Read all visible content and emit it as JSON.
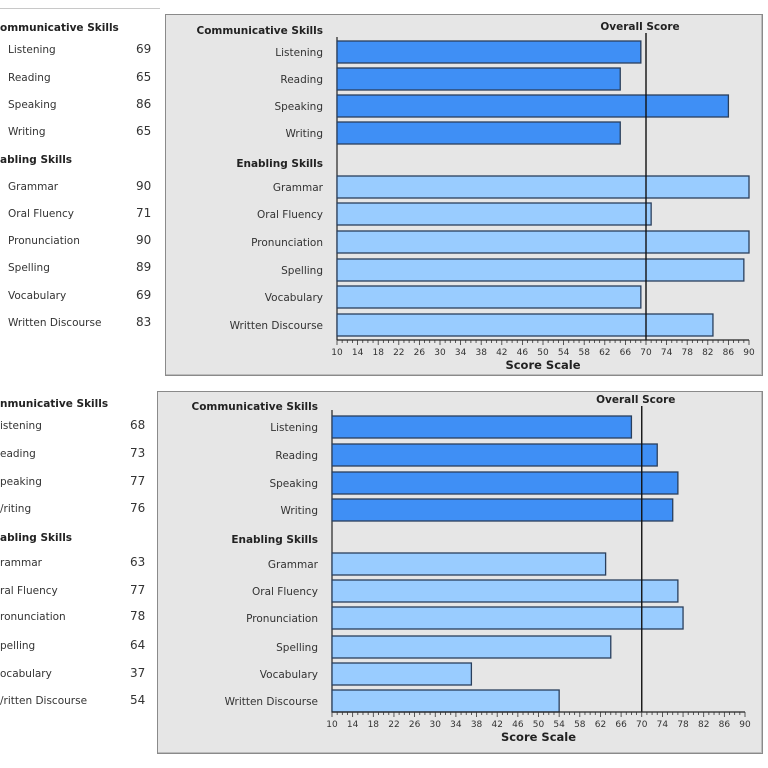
{
  "reports": [
    {
      "side_list": {
        "communicative_header": "ommunicative Skills",
        "enabling_header": "abling Skills",
        "communicative": [
          {
            "label": "Listening",
            "value": "69"
          },
          {
            "label": "Reading",
            "value": "65"
          },
          {
            "label": "Speaking",
            "value": "86"
          },
          {
            "label": "Writing",
            "value": "65"
          }
        ],
        "enabling": [
          {
            "label": "Grammar",
            "value": "90"
          },
          {
            "label": "Oral Fluency",
            "value": "71"
          },
          {
            "label": "Pronunciation",
            "value": "90"
          },
          {
            "label": "Spelling",
            "value": "89"
          },
          {
            "label": "Vocabulary",
            "value": "69"
          },
          {
            "label": "Written Discourse",
            "value": "83"
          }
        ]
      }
    },
    {
      "side_list": {
        "communicative_header": "nmunicative Skills",
        "enabling_header": "abling Skills",
        "communicative": [
          {
            "label": "istening",
            "value": "68"
          },
          {
            "label": "eading",
            "value": "73"
          },
          {
            "label": "peaking",
            "value": "77"
          },
          {
            "label": "/riting",
            "value": "76"
          }
        ],
        "enabling": [
          {
            "label": "rammar",
            "value": "63"
          },
          {
            "label": "ral Fluency",
            "value": "77"
          },
          {
            "label": "ronunciation",
            "value": "78"
          },
          {
            "label": "pelling",
            "value": "64"
          },
          {
            "label": "ocabulary",
            "value": "37"
          },
          {
            "label": "/ritten Discourse",
            "value": "54"
          }
        ]
      }
    }
  ],
  "colors": {
    "communicative_bar": "#3f8ff5",
    "enabling_bar": "#99ccff",
    "bar_outline": "#2a3f5c",
    "panel_bg": "#e6e6e6",
    "overall_line": "#111111"
  },
  "chart_data": [
    {
      "type": "bar",
      "orientation": "horizontal",
      "title": "",
      "xlabel": "Score Scale",
      "ylabel": "",
      "xlim": [
        10,
        90
      ],
      "xticks": [
        10,
        14,
        18,
        22,
        26,
        30,
        34,
        38,
        42,
        46,
        50,
        54,
        58,
        62,
        66,
        70,
        74,
        78,
        82,
        86,
        90
      ],
      "groups": [
        {
          "name": "Communicative Skills",
          "categories": [
            "Listening",
            "Reading",
            "Speaking",
            "Writing"
          ],
          "values": [
            69,
            65,
            86,
            65
          ]
        },
        {
          "name": "Enabling Skills",
          "categories": [
            "Grammar",
            "Oral Fluency",
            "Pronunciation",
            "Spelling",
            "Vocabulary",
            "Written Discourse"
          ],
          "values": [
            90,
            71,
            90,
            89,
            69,
            83
          ]
        }
      ],
      "reference_line": {
        "label": "Overall Score",
        "value": 70
      }
    },
    {
      "type": "bar",
      "orientation": "horizontal",
      "title": "",
      "xlabel": "Score Scale",
      "ylabel": "",
      "xlim": [
        10,
        90
      ],
      "xticks": [
        10,
        14,
        18,
        22,
        26,
        30,
        34,
        38,
        42,
        46,
        50,
        54,
        58,
        62,
        66,
        70,
        74,
        78,
        82,
        86,
        90
      ],
      "groups": [
        {
          "name": "Communicative Skills",
          "categories": [
            "Listening",
            "Reading",
            "Speaking",
            "Writing"
          ],
          "values": [
            68,
            73,
            77,
            76
          ]
        },
        {
          "name": "Enabling Skills",
          "categories": [
            "Grammar",
            "Oral Fluency",
            "Pronunciation",
            "Spelling",
            "Vocabulary",
            "Written Discourse"
          ],
          "values": [
            63,
            77,
            78,
            64,
            37,
            54
          ]
        }
      ],
      "reference_line": {
        "label": "Overall Score",
        "value": 70
      }
    }
  ]
}
